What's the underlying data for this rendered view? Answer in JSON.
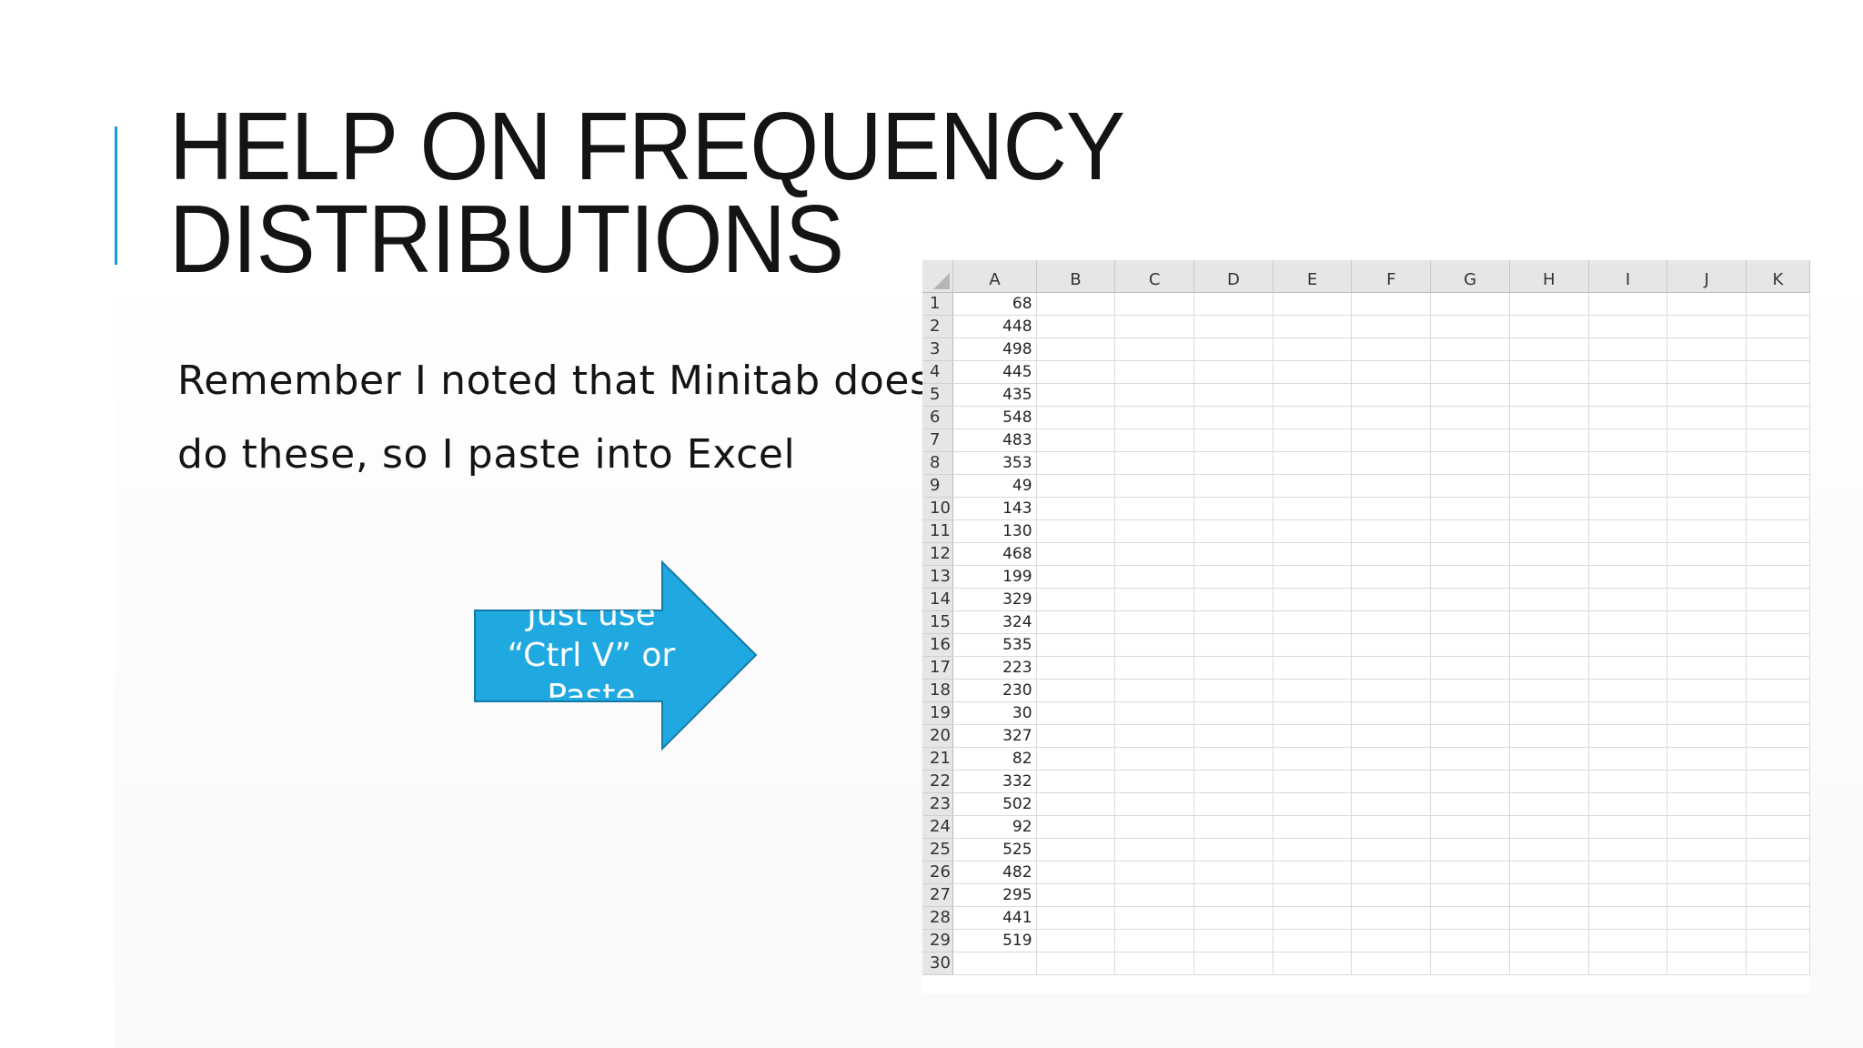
{
  "slide": {
    "title_lines": [
      "HELP ON FREQUENCY",
      "DISTRIBUTIONS"
    ],
    "body_lines": [
      "Remember I noted that Minitab does",
      "do these, so I paste into Excel"
    ],
    "accent_color": "#1a9ad6"
  },
  "arrow": {
    "text_lines": [
      "Just use",
      "“Ctrl V” or",
      "Paste"
    ],
    "fill_color": "#1fa9e0",
    "icon": "right-arrow-shape"
  },
  "spreadsheet": {
    "columns": [
      "A",
      "B",
      "C",
      "D",
      "E",
      "F",
      "G",
      "H",
      "I",
      "J",
      "K"
    ],
    "row_numbers": [
      "1",
      "2",
      "3",
      "4",
      "5",
      "6",
      "7",
      "8",
      "9",
      "10",
      "11",
      "12",
      "13",
      "14",
      "15",
      "16",
      "17",
      "18",
      "19",
      "20",
      "21",
      "22",
      "23",
      "24",
      "25",
      "26",
      "27",
      "28",
      "29",
      "30"
    ],
    "column_a_values": [
      "68",
      "448",
      "498",
      "445",
      "435",
      "548",
      "483",
      "353",
      "49",
      "143",
      "130",
      "468",
      "199",
      "329",
      "324",
      "535",
      "223",
      "230",
      "30",
      "327",
      "82",
      "332",
      "502",
      "92",
      "525",
      "482",
      "295",
      "441",
      "519",
      ""
    ]
  }
}
